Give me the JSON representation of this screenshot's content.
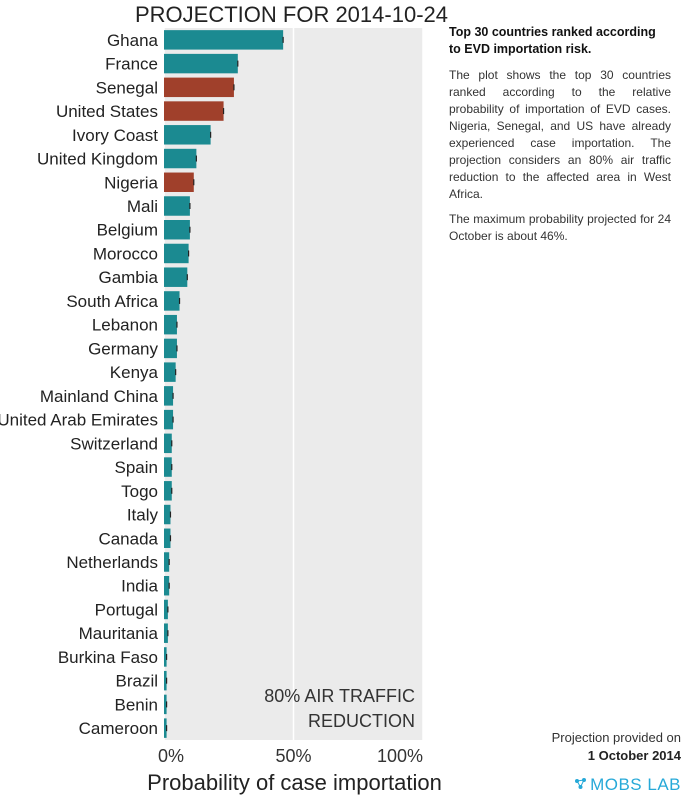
{
  "chart_data": {
    "type": "bar",
    "orientation": "horizontal",
    "title": "PROJECTION FOR 2014-10-24",
    "xlabel": "Probability of case importation",
    "xlim": [
      0,
      100
    ],
    "x_ticks": [
      "0%",
      "50%",
      "100%"
    ],
    "grid": true,
    "annotation_lines": [
      "80% AIR TRAFFIC",
      "REDUCTION"
    ],
    "colors": {
      "default": "#1b8a91",
      "highlight": "#a0402b",
      "background": "#ebebeb",
      "grid": "#ffffff"
    },
    "categories": [
      "Ghana",
      "France",
      "Senegal",
      "United States",
      "Ivory Coast",
      "United Kingdom",
      "Nigeria",
      "Mali",
      "Belgium",
      "Morocco",
      "Gambia",
      "South Africa",
      "Lebanon",
      "Germany",
      "Kenya",
      "Mainland China",
      "United Arab Emirates",
      "Switzerland",
      "Spain",
      "Togo",
      "Italy",
      "Canada",
      "Netherlands",
      "India",
      "Portugal",
      "Mauritania",
      "Burkina Faso",
      "Brazil",
      "Benin",
      "Cameroon"
    ],
    "values": [
      46,
      28.5,
      27,
      23,
      18,
      12.5,
      11.5,
      10,
      10,
      9.5,
      9,
      6,
      5,
      5,
      4.5,
      3.5,
      3.5,
      3,
      3,
      3,
      2.5,
      2.5,
      2,
      2,
      1.5,
      1.5,
      1,
      1,
      1,
      1
    ],
    "highlighted": [
      "Senegal",
      "United States",
      "Nigeria"
    ]
  },
  "sidebar": {
    "title": "Top 30 countries ranked according to EVD importation risk.",
    "paragraph1": "The plot shows the top 30 countries ranked according to the relative probability of importation of EVD cases. Nigeria, Senegal, and US have already experienced case importation. The projection considers an 80% air traffic reduction to the affected area in West Africa.",
    "paragraph2": "The maximum probability projected for 24 October is about 46%."
  },
  "footer": {
    "line1": "Projection provided on",
    "line2": "1 October 2014",
    "brand": "MOBS LAB"
  }
}
